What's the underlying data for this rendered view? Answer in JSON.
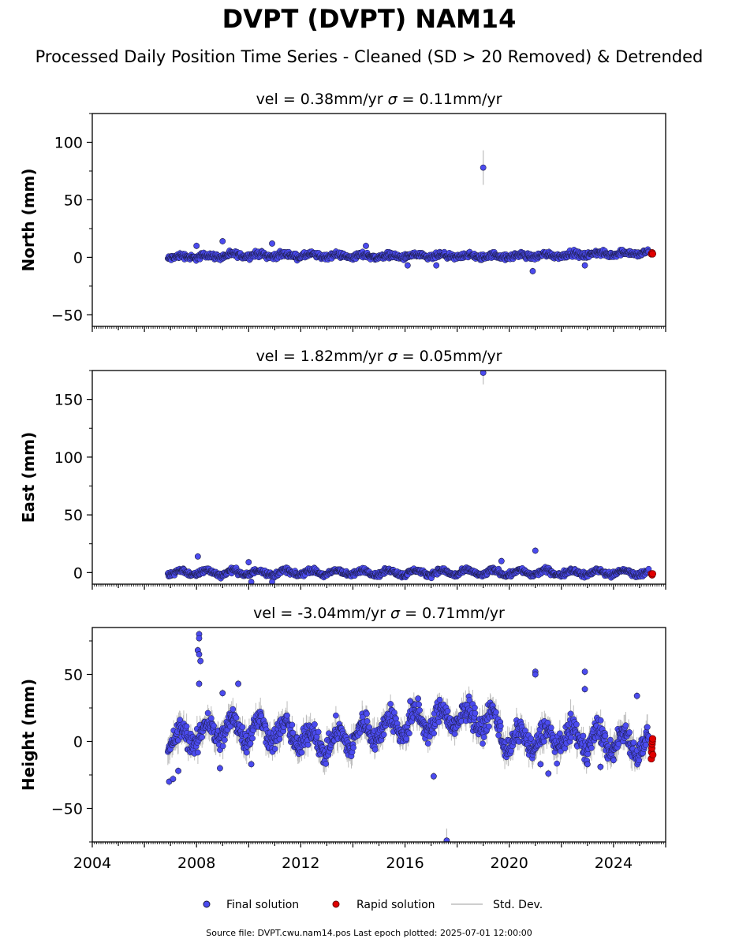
{
  "page": {
    "title": "DVPT (DVPT) NAM14",
    "subtitle": "Processed Daily Position Time Series - Cleaned (SD > 20 Removed) & Detrended",
    "footer": "Source file: DVPT.cwu.nam14.pos  Last epoch plotted: 2025-07-01 12:00:00"
  },
  "legend": {
    "final": "Final solution",
    "rapid": "Rapid solution",
    "std": "Std. Dev."
  },
  "colors": {
    "final": "#4b4bef",
    "final_edge": "#1a1a40",
    "rapid": "#e00000",
    "rapid_edge": "#600000",
    "std": "#bdbdbd",
    "axis": "#000000"
  },
  "chart_data": [
    {
      "type": "scatter",
      "title": "vel = 0.38mm/yr   σ = 0.11mm/yr",
      "vel": "vel = 0.38mm/yr",
      "sigma_symbol": "σ",
      "sigma_rest": " = 0.11mm/yr",
      "ylabel": "North (mm)",
      "xlim": [
        2004,
        2026
      ],
      "ylim": [
        -60,
        125
      ],
      "yticks": [
        -50,
        0,
        50,
        100
      ],
      "yticklabels": [
        "−50",
        "0",
        "50",
        "100"
      ],
      "show_xticklabels": false,
      "data_range": [
        2006.9,
        2025.35
      ],
      "model": {
        "noise": 1.8,
        "amp": 1.2,
        "segments": [
          [
            2006.9,
            0
          ],
          [
            2010.0,
            2
          ],
          [
            2015.0,
            1
          ],
          [
            2020.0,
            1
          ],
          [
            2025.35,
            4
          ]
        ]
      },
      "outliers": [
        {
          "x": 2019.0,
          "y": 78,
          "err": 15
        },
        {
          "x": 2008.0,
          "y": 10
        },
        {
          "x": 2009.0,
          "y": 14
        },
        {
          "x": 2010.9,
          "y": 12
        },
        {
          "x": 2014.5,
          "y": 10
        },
        {
          "x": 2016.1,
          "y": -7
        },
        {
          "x": 2017.2,
          "y": -7
        },
        {
          "x": 2020.9,
          "y": -12
        },
        {
          "x": 2022.9,
          "y": -7
        }
      ],
      "rapid": {
        "x": [
          2025.45,
          2025.48,
          2025.5
        ],
        "y": [
          3,
          4,
          3
        ]
      }
    },
    {
      "type": "scatter",
      "title": "vel = 1.82mm/yr   σ = 0.05mm/yr",
      "vel": "vel = 1.82mm/yr",
      "sigma_symbol": "σ",
      "sigma_rest": " = 0.05mm/yr",
      "ylabel": "East (mm)",
      "xlim": [
        2004,
        2026
      ],
      "ylim": [
        -10,
        175
      ],
      "yticks": [
        0,
        50,
        100,
        150
      ],
      "yticklabels": [
        "0",
        "50",
        "100",
        "150"
      ],
      "show_xticklabels": false,
      "data_range": [
        2006.9,
        2025.35
      ],
      "model": {
        "noise": 1.6,
        "amp": 2.2,
        "segments": [
          [
            2006.9,
            0
          ],
          [
            2025.35,
            0
          ]
        ]
      },
      "outliers": [
        {
          "x": 2019.0,
          "y": 173,
          "err": 10
        },
        {
          "x": 2008.05,
          "y": 14
        },
        {
          "x": 2010.0,
          "y": 9
        },
        {
          "x": 2021.0,
          "y": 19
        },
        {
          "x": 2019.7,
          "y": 10
        },
        {
          "x": 2010.1,
          "y": -8
        },
        {
          "x": 2010.9,
          "y": -8
        }
      ],
      "rapid": {
        "x": [
          2025.45,
          2025.48,
          2025.5
        ],
        "y": [
          -1,
          -2,
          -1
        ]
      }
    },
    {
      "type": "scatter",
      "title": "vel = -3.04mm/yr   σ = 0.71mm/yr",
      "vel": "vel = -3.04mm/yr",
      "sigma_symbol": "σ",
      "sigma_rest": " = 0.71mm/yr",
      "ylabel": "Height (mm)",
      "xlim": [
        2004,
        2026
      ],
      "ylim": [
        -75,
        85
      ],
      "yticks": [
        -50,
        0,
        50
      ],
      "yticklabels": [
        "−50",
        "0",
        "50"
      ],
      "xticks": [
        2004,
        2008,
        2012,
        2016,
        2020,
        2024
      ],
      "xticklabels": [
        "2004",
        "2008",
        "2012",
        "2016",
        "2020",
        "2024"
      ],
      "show_xticklabels": true,
      "data_range": [
        2006.9,
        2025.35
      ],
      "model": {
        "noise": 6,
        "amp": 8,
        "segments": [
          [
            2006.9,
            0
          ],
          [
            2007.5,
            2
          ],
          [
            2009.0,
            10
          ],
          [
            2011.0,
            8
          ],
          [
            2013.0,
            -2
          ],
          [
            2015.0,
            10
          ],
          [
            2018.0,
            18
          ],
          [
            2019.3,
            16
          ],
          [
            2020.0,
            0
          ],
          [
            2022.0,
            3
          ],
          [
            2025.35,
            -2
          ]
        ]
      },
      "outliers": [
        {
          "x": 2008.1,
          "y": 80
        },
        {
          "x": 2008.1,
          "y": 77
        },
        {
          "x": 2008.05,
          "y": 68
        },
        {
          "x": 2008.1,
          "y": 65
        },
        {
          "x": 2008.15,
          "y": 60
        },
        {
          "x": 2008.1,
          "y": 43
        },
        {
          "x": 2009.0,
          "y": 36
        },
        {
          "x": 2009.6,
          "y": 43
        },
        {
          "x": 2006.95,
          "y": -30
        },
        {
          "x": 2007.1,
          "y": -28
        },
        {
          "x": 2007.3,
          "y": -22
        },
        {
          "x": 2008.9,
          "y": -20
        },
        {
          "x": 2010.1,
          "y": -17
        },
        {
          "x": 2016.5,
          "y": 32
        },
        {
          "x": 2016.2,
          "y": 30
        },
        {
          "x": 2017.1,
          "y": -26
        },
        {
          "x": 2017.6,
          "y": -74,
          "err": 9
        },
        {
          "x": 2021.0,
          "y": 52
        },
        {
          "x": 2021.0,
          "y": 50
        },
        {
          "x": 2021.2,
          "y": -17
        },
        {
          "x": 2021.5,
          "y": -24
        },
        {
          "x": 2022.9,
          "y": 52
        },
        {
          "x": 2022.9,
          "y": 39
        },
        {
          "x": 2023.0,
          "y": -17
        },
        {
          "x": 2023.5,
          "y": -19
        },
        {
          "x": 2024.0,
          "y": -14
        },
        {
          "x": 2024.9,
          "y": 34
        }
      ],
      "rapid": {
        "x": [
          2025.45,
          2025.46,
          2025.47,
          2025.48,
          2025.49,
          2025.5,
          2025.51
        ],
        "y": [
          -13,
          -8,
          -5,
          -2,
          0,
          2,
          -10
        ]
      }
    }
  ]
}
